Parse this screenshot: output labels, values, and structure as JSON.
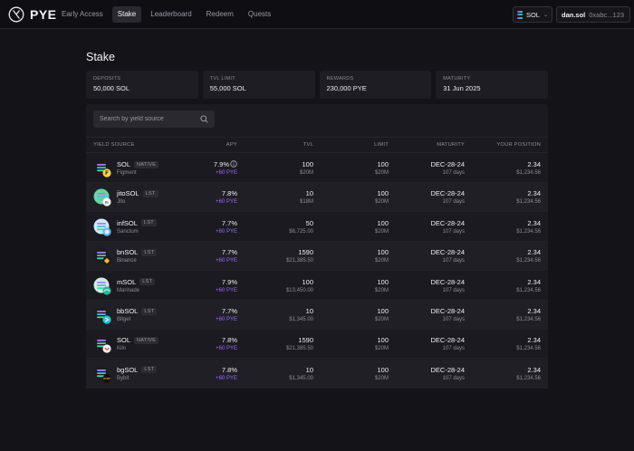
{
  "brand": {
    "name": "PYE"
  },
  "nav": {
    "tabs": [
      "Early Access",
      "Stake",
      "Leaderboard",
      "Redeem",
      "Quests"
    ],
    "active": "Stake"
  },
  "chain": {
    "label": "SOL"
  },
  "wallet": {
    "name": "dan.sol",
    "address": "0xabc...123"
  },
  "page": {
    "title": "Stake"
  },
  "stats": [
    {
      "label": "DEPOSITS",
      "value": "50,000 SOL"
    },
    {
      "label": "TVL LIMIT",
      "value": "55,000 SOL"
    },
    {
      "label": "REWARDS",
      "value": "230,000 PYE"
    },
    {
      "label": "MATURITY",
      "value": "31 Jun 2025"
    }
  ],
  "search": {
    "placeholder": "Search by yield source"
  },
  "table": {
    "headers": {
      "source": "YIELD SOURCE",
      "apy": "APY",
      "tvl": "TVL",
      "limit": "LIMIT",
      "maturity": "MATURITY",
      "position": "YOUR POSITION"
    },
    "rows": [
      {
        "name": "SOL",
        "tag": "NATIVE",
        "provider": "Figment",
        "icon": "figment-icon",
        "apy": "7.9%",
        "bonus": "+60 PYE",
        "tvl": "100",
        "tvl_usd": "$20M",
        "limit": "100",
        "limit_usd": "$20M",
        "maturity": "DEC-28-24",
        "days": "107 days",
        "position": "2.34",
        "position_usd": "$1,234.56"
      },
      {
        "name": "jitoSOL",
        "tag": "LST",
        "provider": "Jito",
        "icon": "jito-icon",
        "apy": "7.8%",
        "bonus": "+60 PYE",
        "tvl": "10",
        "tvl_usd": "$18M",
        "limit": "100",
        "limit_usd": "$20M",
        "maturity": "DEC-28-24",
        "days": "107 days",
        "position": "2.34",
        "position_usd": "$1,234.56"
      },
      {
        "name": "infSOL",
        "tag": "LST",
        "provider": "Sanctum",
        "icon": "sanctum-icon",
        "apy": "7.7%",
        "bonus": "+60 PYE",
        "tvl": "50",
        "tvl_usd": "$6,725.00",
        "limit": "100",
        "limit_usd": "$20M",
        "maturity": "DEC-28-24",
        "days": "107 days",
        "position": "2.34",
        "position_usd": "$1,234.56"
      },
      {
        "name": "bnSOL",
        "tag": "LST",
        "provider": "Binance",
        "icon": "binance-icon",
        "apy": "7.7%",
        "bonus": "+60 PYE",
        "tvl": "1590",
        "tvl_usd": "$21,385.50",
        "limit": "100",
        "limit_usd": "$20M",
        "maturity": "DEC-28-24",
        "days": "107 days",
        "position": "2.34",
        "position_usd": "$1,234.56"
      },
      {
        "name": "mSOL",
        "tag": "LST",
        "provider": "Marinade",
        "icon": "marinade-icon",
        "apy": "7.9%",
        "bonus": "+60 PYE",
        "tvl": "100",
        "tvl_usd": "$13,450.00",
        "limit": "100",
        "limit_usd": "$20M",
        "maturity": "DEC-28-24",
        "days": "107 days",
        "position": "2.34",
        "position_usd": "$1,234.56"
      },
      {
        "name": "bbSOL",
        "tag": "LST",
        "provider": "Bitget",
        "icon": "bitget-icon",
        "apy": "7.7%",
        "bonus": "+60 PYE",
        "tvl": "10",
        "tvl_usd": "$1,345.00",
        "limit": "100",
        "limit_usd": "$20M",
        "maturity": "DEC-28-24",
        "days": "107 days",
        "position": "2.34",
        "position_usd": "$1,234.56"
      },
      {
        "name": "SOL",
        "tag": "NATIVE",
        "provider": "Kiln",
        "icon": "kiln-icon",
        "apy": "7.8%",
        "bonus": "+60 PYE",
        "tvl": "1590",
        "tvl_usd": "$21,385.50",
        "limit": "100",
        "limit_usd": "$20M",
        "maturity": "DEC-28-24",
        "days": "107 days",
        "position": "2.34",
        "position_usd": "$1,234.56"
      },
      {
        "name": "bgSOL",
        "tag": "LST",
        "provider": "Bybit",
        "icon": "bybit-icon",
        "apy": "7.8%",
        "bonus": "+60 PYE",
        "tvl": "10",
        "tvl_usd": "$1,345.00",
        "limit": "100",
        "limit_usd": "$20M",
        "maturity": "DEC-28-24",
        "days": "107 days",
        "position": "2.34",
        "position_usd": "$1,234.56"
      }
    ]
  },
  "colors": {
    "accent": "#9b6bff",
    "background": "#141318",
    "panel": "#1b1a20"
  }
}
